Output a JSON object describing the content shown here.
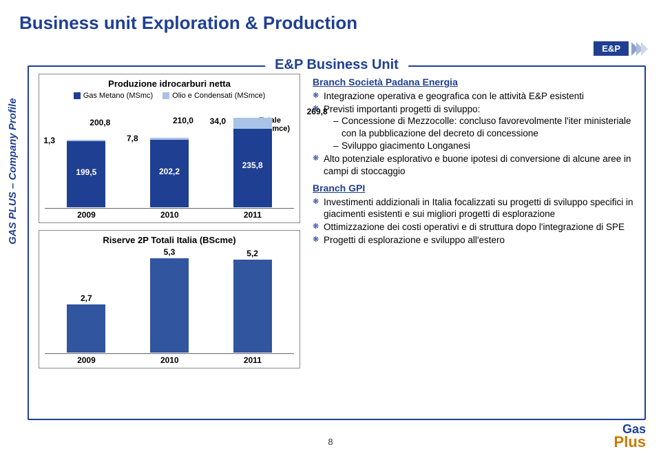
{
  "slide": {
    "title": "Business unit Exploration & Production",
    "tag": "E&P",
    "sidebar": "GAS PLUS – Company Profile",
    "bu_title": "E&P Business Unit",
    "page_number": "8",
    "logo_top": "Gas",
    "logo_bottom": "Plus"
  },
  "colors": {
    "brand": "#1f3f92",
    "orange": "#cc7a00",
    "barDark": "#1f3f92",
    "barLight": "#a9c2e8",
    "barSingle": "#31559f",
    "chev1": "#8aa0cf",
    "chev2": "#adbbdc",
    "chev3": "#cfd7ea"
  },
  "chart1": {
    "title": "Produzione idrocarburi netta",
    "legend": [
      {
        "label": "Gas Metano (MSmc)",
        "color": "#1f3f92"
      },
      {
        "label": "Olio e Condensati (MSmce)",
        "color": "#a9c2e8"
      }
    ],
    "totale_l1": "Totale",
    "totale_l2": "(Msmce)",
    "ymax": 290,
    "categories": [
      "2009",
      "2010",
      "2011"
    ],
    "bars": [
      {
        "total": "200,8",
        "top_val": 1.3,
        "top_label": "1,3",
        "bot_val": 199.5,
        "bot_label": "199,5"
      },
      {
        "total": "210,0",
        "top_val": 7.8,
        "top_label": "7,8",
        "bot_val": 202.2,
        "bot_label": "202,2"
      },
      {
        "total": "269,8",
        "top_val": 34.0,
        "top_label": "34,0",
        "bot_val": 235.8,
        "bot_label": "235,8"
      }
    ]
  },
  "chart2": {
    "title": "Riserve 2P Totali Italia (BScme)",
    "ymax": 5.6,
    "color": "#31559f",
    "categories": [
      "2009",
      "2010",
      "2011"
    ],
    "bars": [
      {
        "val": 2.7,
        "label": "2,7"
      },
      {
        "val": 5.3,
        "label": "5,3"
      },
      {
        "val": 5.2,
        "label": "5,2"
      }
    ]
  },
  "right": {
    "branch1": {
      "heading": "Branch Società Padana Energia",
      "b1": "Integrazione operativa e geografica con le attività E&P esistenti",
      "b2": "Previsti importanti progetti di sviluppo:",
      "b2s1": "Concessione di Mezzocolle: concluso favorevolmente l'iter ministeriale con la pubblicazione del decreto di concessione",
      "b2s2": "Sviluppo giacimento Longanesi",
      "b3": "Alto potenziale esplorativo e buone ipotesi di conversione di alcune aree in campi di stoccaggio"
    },
    "branch2": {
      "heading": "Branch GPI",
      "b1": "Investimenti addizionali in Italia focalizzati su progetti di sviluppo specifici in giacimenti esistenti e sui migliori progetti di esplorazione",
      "b2": "Ottimizzazione dei costi operativi e di struttura dopo l'integrazione di SPE",
      "b3": "Progetti di esplorazione e sviluppo all'estero"
    }
  }
}
